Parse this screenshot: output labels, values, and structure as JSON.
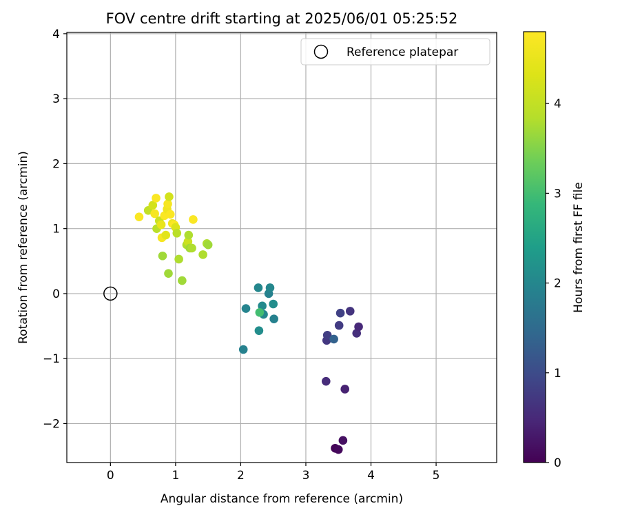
{
  "chart_data": {
    "type": "scatter",
    "title": "FOV centre drift starting at 2025/06/01 05:25:52",
    "xlabel": "Angular distance from reference (arcmin)",
    "ylabel": "Rotation from reference (arcmin)",
    "xlim": [
      -0.67,
      5.93
    ],
    "ylim": [
      -2.6,
      4.02
    ],
    "xticks": [
      0,
      1,
      2,
      3,
      4,
      5
    ],
    "xtick_labels": [
      "0",
      "1",
      "2",
      "3",
      "4",
      "5"
    ],
    "yticks": [
      -2,
      -1,
      0,
      1,
      2,
      3,
      4
    ],
    "ytick_labels": [
      "−2",
      "−1",
      "0",
      "1",
      "2",
      "3",
      "4"
    ],
    "grid": true,
    "legend": {
      "position": "top-right",
      "entries": [
        "Reference platepar"
      ]
    },
    "reference_point": {
      "name": "Reference platepar",
      "x": 0,
      "y": 0
    },
    "colorbar": {
      "label": "Hours from first FF file",
      "colormap": "viridis",
      "range": [
        0,
        4.8
      ],
      "ticks": [
        0,
        1,
        2,
        3,
        4
      ],
      "tick_labels": [
        "0",
        "1",
        "2",
        "3",
        "4"
      ]
    },
    "points": [
      {
        "x": 3.45,
        "y": -2.38,
        "c": 0.05
      },
      {
        "x": 3.5,
        "y": -2.4,
        "c": 0.1
      },
      {
        "x": 3.57,
        "y": -2.26,
        "c": 0.18
      },
      {
        "x": 3.6,
        "y": -1.47,
        "c": 0.4
      },
      {
        "x": 3.31,
        "y": -1.35,
        "c": 0.55
      },
      {
        "x": 3.32,
        "y": -0.72,
        "c": 0.7
      },
      {
        "x": 3.33,
        "y": -0.64,
        "c": 0.8
      },
      {
        "x": 3.43,
        "y": -0.7,
        "c": 1.35
      },
      {
        "x": 3.51,
        "y": -0.49,
        "c": 0.75
      },
      {
        "x": 3.53,
        "y": -0.3,
        "c": 0.85
      },
      {
        "x": 3.68,
        "y": -0.27,
        "c": 0.65
      },
      {
        "x": 3.78,
        "y": -0.61,
        "c": 0.6
      },
      {
        "x": 3.81,
        "y": -0.51,
        "c": 0.5
      },
      {
        "x": 2.04,
        "y": -0.86,
        "c": 1.9
      },
      {
        "x": 2.08,
        "y": -0.23,
        "c": 1.95
      },
      {
        "x": 2.27,
        "y": 0.09,
        "c": 2.0
      },
      {
        "x": 2.28,
        "y": -0.57,
        "c": 2.1
      },
      {
        "x": 2.33,
        "y": -0.19,
        "c": 2.05
      },
      {
        "x": 2.35,
        "y": -0.32,
        "c": 2.0
      },
      {
        "x": 2.43,
        "y": 0.0,
        "c": 1.9
      },
      {
        "x": 2.45,
        "y": 0.09,
        "c": 2.0
      },
      {
        "x": 2.5,
        "y": -0.16,
        "c": 2.1
      },
      {
        "x": 2.51,
        "y": -0.39,
        "c": 1.9
      },
      {
        "x": 2.29,
        "y": -0.29,
        "c": 3.0
      },
      {
        "x": 0.44,
        "y": 1.18,
        "c": 4.75
      },
      {
        "x": 0.58,
        "y": 1.28,
        "c": 4.0
      },
      {
        "x": 0.65,
        "y": 1.36,
        "c": 4.2
      },
      {
        "x": 0.68,
        "y": 1.23,
        "c": 4.7
      },
      {
        "x": 0.7,
        "y": 1.47,
        "c": 4.75
      },
      {
        "x": 0.71,
        "y": 1.0,
        "c": 3.9
      },
      {
        "x": 0.75,
        "y": 1.12,
        "c": 4.1
      },
      {
        "x": 0.78,
        "y": 1.06,
        "c": 4.5
      },
      {
        "x": 0.79,
        "y": 0.86,
        "c": 4.7
      },
      {
        "x": 0.8,
        "y": 0.58,
        "c": 3.7
      },
      {
        "x": 0.83,
        "y": 1.2,
        "c": 4.75
      },
      {
        "x": 0.85,
        "y": 0.9,
        "c": 4.4
      },
      {
        "x": 0.87,
        "y": 1.3,
        "c": 4.6
      },
      {
        "x": 0.88,
        "y": 1.38,
        "c": 4.7
      },
      {
        "x": 0.89,
        "y": 0.31,
        "c": 3.7
      },
      {
        "x": 0.9,
        "y": 1.49,
        "c": 4.2
      },
      {
        "x": 0.92,
        "y": 1.22,
        "c": 4.75
      },
      {
        "x": 0.95,
        "y": 1.08,
        "c": 4.6
      },
      {
        "x": 0.98,
        "y": 1.06,
        "c": 4.75
      },
      {
        "x": 1.0,
        "y": 1.02,
        "c": 4.3
      },
      {
        "x": 1.02,
        "y": 0.93,
        "c": 3.9
      },
      {
        "x": 1.05,
        "y": 0.53,
        "c": 3.8
      },
      {
        "x": 1.1,
        "y": 0.2,
        "c": 3.7
      },
      {
        "x": 1.17,
        "y": 0.75,
        "c": 3.8
      },
      {
        "x": 1.19,
        "y": 0.8,
        "c": 4.1
      },
      {
        "x": 1.2,
        "y": 0.9,
        "c": 3.8
      },
      {
        "x": 1.22,
        "y": 0.7,
        "c": 3.7
      },
      {
        "x": 1.25,
        "y": 0.7,
        "c": 3.8
      },
      {
        "x": 1.27,
        "y": 1.14,
        "c": 4.75
      },
      {
        "x": 1.42,
        "y": 0.6,
        "c": 3.8
      },
      {
        "x": 1.48,
        "y": 0.77,
        "c": 3.8
      },
      {
        "x": 1.5,
        "y": 0.75,
        "c": 3.7
      }
    ]
  }
}
